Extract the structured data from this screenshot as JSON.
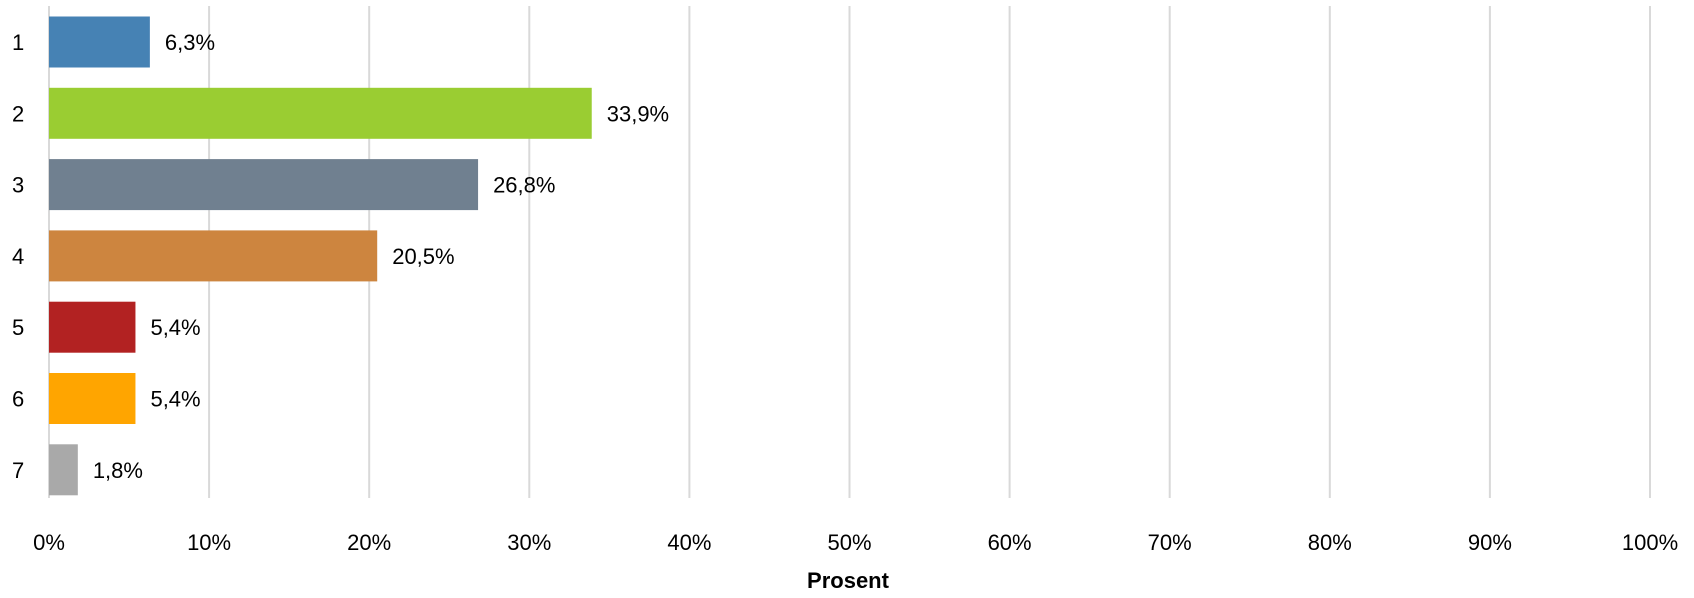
{
  "chart_data": {
    "type": "bar",
    "orientation": "horizontal",
    "categories": [
      "1",
      "2",
      "3",
      "4",
      "5",
      "6",
      "7"
    ],
    "values": [
      6.3,
      33.9,
      26.8,
      20.5,
      5.4,
      5.4,
      1.8
    ],
    "data_labels": [
      "6,3%",
      "33,9%",
      "26,8%",
      "20,5%",
      "5,4%",
      "5,4%",
      "1,8%"
    ],
    "colors": [
      "#4682B4",
      "#9ACD32",
      "#708090",
      "#CD853F",
      "#B22222",
      "#FFA500",
      "#A9A9A9"
    ],
    "xlim": [
      0,
      100
    ],
    "xticks": [
      0,
      10,
      20,
      30,
      40,
      50,
      60,
      70,
      80,
      90,
      100
    ],
    "xtick_labels": [
      "0%",
      "10%",
      "20%",
      "30%",
      "40%",
      "50%",
      "60%",
      "70%",
      "80%",
      "90%",
      "100%"
    ],
    "xlabel": "Prosent",
    "ylabel": "",
    "title": "",
    "grid": "vertical",
    "grid_color": "#d9d9d9",
    "legend": "none"
  }
}
